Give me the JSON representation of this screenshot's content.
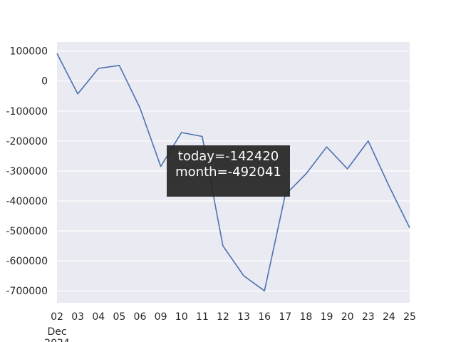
{
  "chart_data": {
    "type": "line",
    "x": [
      "02",
      "03",
      "04",
      "05",
      "06",
      "09",
      "10",
      "11",
      "12",
      "13",
      "16",
      "17",
      "18",
      "19",
      "20",
      "23",
      "24",
      "25"
    ],
    "x_secondary_label": [
      "Dec",
      "2024"
    ],
    "series": [
      {
        "values": [
          92000,
          -43000,
          42000,
          52000,
          -90000,
          -285000,
          -172000,
          -185000,
          -550000,
          -650000,
          -700000,
          -380000,
          -310000,
          -220000,
          -293000,
          -200000,
          -350000,
          -490000
        ],
        "color": "#4c72b0"
      }
    ],
    "ylim": [
      -740000,
      130000
    ],
    "yticks": [
      100000,
      0,
      -100000,
      -200000,
      -300000,
      -400000,
      -500000,
      -600000,
      -700000
    ],
    "grid": true,
    "background": "#eaeaf2",
    "gridcolor": "#ffffff"
  },
  "tooltip": {
    "today": "today=-142420",
    "month": "month=-492041"
  }
}
